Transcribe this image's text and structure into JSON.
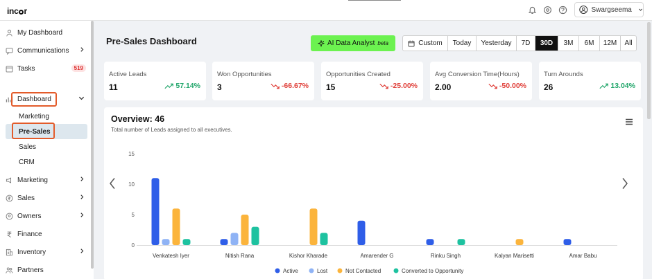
{
  "app": {
    "logo_prefix": "inc",
    "logo_suffix": "r"
  },
  "topbar": {
    "user_name": "Swargseema"
  },
  "sidebar": {
    "items": [
      {
        "label": "My Dashboard"
      },
      {
        "label": "Communications"
      },
      {
        "label": "Tasks",
        "badge": "519"
      },
      {
        "label": "Dashboard"
      },
      {
        "label": "Marketing"
      },
      {
        "label": "Sales"
      },
      {
        "label": "Owners"
      },
      {
        "label": "Finance"
      },
      {
        "label": "Inventory"
      },
      {
        "label": "Partners"
      }
    ],
    "sub_items": [
      {
        "label": "Marketing"
      },
      {
        "label": "Pre-Sales"
      },
      {
        "label": "Sales"
      },
      {
        "label": "CRM"
      }
    ]
  },
  "header": {
    "title": "Pre-Sales Dashboard",
    "ai_label": "AI Data Analyst",
    "ai_tag": "beta",
    "ranges": [
      "Custom",
      "Today",
      "Yesterday",
      "7D",
      "30D",
      "3M",
      "6M",
      "12M",
      "All"
    ],
    "active_range": "30D"
  },
  "kpis": [
    {
      "label": "Active Leads",
      "value": "11",
      "change": "57.14%",
      "trend": "up"
    },
    {
      "label": "Won Opportunities",
      "value": "3",
      "change": "-66.67%",
      "trend": "down"
    },
    {
      "label": "Opportunities Created",
      "value": "15",
      "change": "-25.00%",
      "trend": "down"
    },
    {
      "label": "Avg Conversion Time(Hours)",
      "value": "2.00",
      "change": "-50.00%",
      "trend": "down"
    },
    {
      "label": "Turn Arounds",
      "value": "26",
      "change": "13.04%",
      "trend": "up"
    }
  ],
  "overview": {
    "title": "Overview: 46",
    "subtitle": "Total number of Leads assigned to all executives."
  },
  "colors": {
    "active": "#2f5ee8",
    "lost": "#8fb3f5",
    "not_contacted": "#fbb43c",
    "converted": "#1ec2a0",
    "accent_green": "#6cf250",
    "highlight": "#e35b2a"
  },
  "chart_data": {
    "type": "bar",
    "categories": [
      "Venkatesh Iyer",
      "Nitish Rana",
      "Kishor Kharade",
      "Amarender G",
      "Rinku Singh",
      "Kalyan Marisetti",
      "Amar Babu"
    ],
    "series": [
      {
        "name": "Active",
        "values": [
          11,
          1,
          0,
          4,
          1,
          0,
          1
        ]
      },
      {
        "name": "Lost",
        "values": [
          1,
          2,
          0,
          0,
          0,
          0,
          0
        ]
      },
      {
        "name": "Not Contacted",
        "values": [
          6,
          5,
          6,
          0,
          0,
          1,
          0
        ]
      },
      {
        "name": "Converted to Opportunity",
        "values": [
          1,
          3,
          2,
          0,
          1,
          0,
          0
        ]
      }
    ],
    "yticks": [
      0,
      5,
      10,
      15
    ],
    "ylim": [
      0,
      15
    ],
    "legend": "bottom",
    "grid": false
  }
}
